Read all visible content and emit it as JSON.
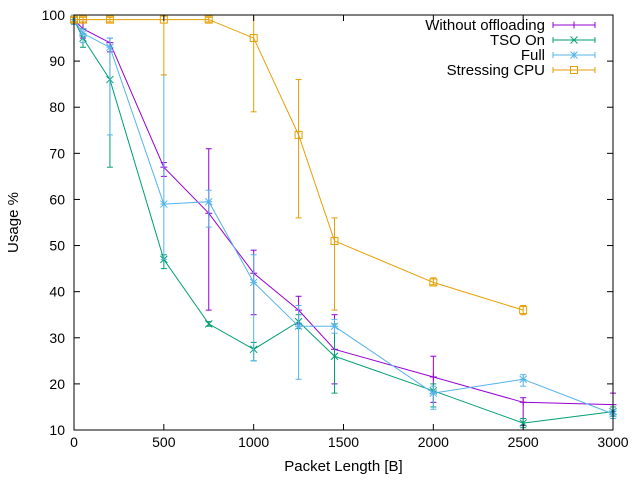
{
  "chart_data": {
    "type": "line",
    "xlabel": "Packet Length [B]",
    "ylabel": "Usage %",
    "xlim": [
      0,
      3000
    ],
    "ylim": [
      10,
      100
    ],
    "x_ticks": [
      0,
      500,
      1000,
      1500,
      2000,
      2500,
      3000
    ],
    "y_ticks": [
      10,
      20,
      30,
      40,
      50,
      60,
      70,
      80,
      90,
      100
    ],
    "grid": false,
    "legend_position": "top-right",
    "series": [
      {
        "name": "Without offloading",
        "color": "#9400d3",
        "marker": "plus",
        "points": [
          {
            "x": 0,
            "y": 99,
            "lo": 98,
            "hi": 100
          },
          {
            "x": 50,
            "y": 97,
            "lo": 95,
            "hi": 99
          },
          {
            "x": 200,
            "y": 94,
            "lo": 92,
            "hi": 95
          },
          {
            "x": 500,
            "y": 67,
            "lo": 65,
            "hi": 68
          },
          {
            "x": 750,
            "y": 57,
            "lo": 36,
            "hi": 71
          },
          {
            "x": 1000,
            "y": 44,
            "lo": 35,
            "hi": 49
          },
          {
            "x": 1250,
            "y": 36,
            "lo": 33,
            "hi": 39
          },
          {
            "x": 1450,
            "y": 27.5,
            "lo": 20,
            "hi": 35
          },
          {
            "x": 2000,
            "y": 21.5,
            "lo": 16,
            "hi": 26
          },
          {
            "x": 2500,
            "y": 16,
            "lo": 11,
            "hi": 17
          },
          {
            "x": 3000,
            "y": 15.5,
            "lo": 14,
            "hi": 18
          }
        ]
      },
      {
        "name": "TSO On",
        "color": "#009e73",
        "marker": "cross",
        "points": [
          {
            "x": 0,
            "y": 99,
            "lo": 98,
            "hi": 100
          },
          {
            "x": 50,
            "y": 95,
            "lo": 93,
            "hi": 97
          },
          {
            "x": 200,
            "y": 86,
            "lo": 67,
            "hi": 95
          },
          {
            "x": 500,
            "y": 47,
            "lo": 45,
            "hi": 48
          },
          {
            "x": 750,
            "y": 33,
            "lo": 32.5,
            "hi": 33.5
          },
          {
            "x": 1000,
            "y": 27.5,
            "lo": 25,
            "hi": 29
          },
          {
            "x": 1250,
            "y": 33.5,
            "lo": 32,
            "hi": 35
          },
          {
            "x": 1450,
            "y": 26,
            "lo": 18,
            "hi": 33
          },
          {
            "x": 2000,
            "y": 18.5,
            "lo": 15,
            "hi": 20
          },
          {
            "x": 2500,
            "y": 11.5,
            "lo": 10.5,
            "hi": 12.5
          },
          {
            "x": 3000,
            "y": 14,
            "lo": 13,
            "hi": 15
          }
        ]
      },
      {
        "name": "Full",
        "color": "#56b4e9",
        "marker": "star",
        "points": [
          {
            "x": 0,
            "y": 99,
            "lo": 98,
            "hi": 100
          },
          {
            "x": 50,
            "y": 96,
            "lo": 94,
            "hi": 97
          },
          {
            "x": 200,
            "y": 93,
            "lo": 74,
            "hi": 95
          },
          {
            "x": 500,
            "y": 59,
            "lo": 47,
            "hi": 87
          },
          {
            "x": 750,
            "y": 59.5,
            "lo": 54,
            "hi": 62
          },
          {
            "x": 1000,
            "y": 42,
            "lo": 25,
            "hi": 48
          },
          {
            "x": 1250,
            "y": 32.5,
            "lo": 21,
            "hi": 37
          },
          {
            "x": 1450,
            "y": 32.5,
            "lo": 31,
            "hi": 34
          },
          {
            "x": 2000,
            "y": 18,
            "lo": 14.5,
            "hi": 19.5
          },
          {
            "x": 2500,
            "y": 21,
            "lo": 19.5,
            "hi": 22
          },
          {
            "x": 3000,
            "y": 13.5,
            "lo": 12.5,
            "hi": 14.5
          }
        ]
      },
      {
        "name": "Stressing CPU",
        "color": "#e69f00",
        "marker": "square",
        "points": [
          {
            "x": 0,
            "y": 99,
            "lo": 98.5,
            "hi": 99.5
          },
          {
            "x": 50,
            "y": 99,
            "lo": 98.5,
            "hi": 99.5
          },
          {
            "x": 200,
            "y": 99,
            "lo": 98.5,
            "hi": 99.5
          },
          {
            "x": 500,
            "y": 99,
            "lo": 87,
            "hi": 100
          },
          {
            "x": 750,
            "y": 99,
            "lo": 98.5,
            "hi": 99.5
          },
          {
            "x": 1000,
            "y": 95,
            "lo": 79,
            "hi": 100
          },
          {
            "x": 1250,
            "y": 74,
            "lo": 56,
            "hi": 86
          },
          {
            "x": 1450,
            "y": 51,
            "lo": 36,
            "hi": 56
          },
          {
            "x": 2000,
            "y": 42,
            "lo": 41.5,
            "hi": 43
          },
          {
            "x": 2500,
            "y": 36,
            "lo": 35,
            "hi": 37
          }
        ]
      }
    ]
  }
}
